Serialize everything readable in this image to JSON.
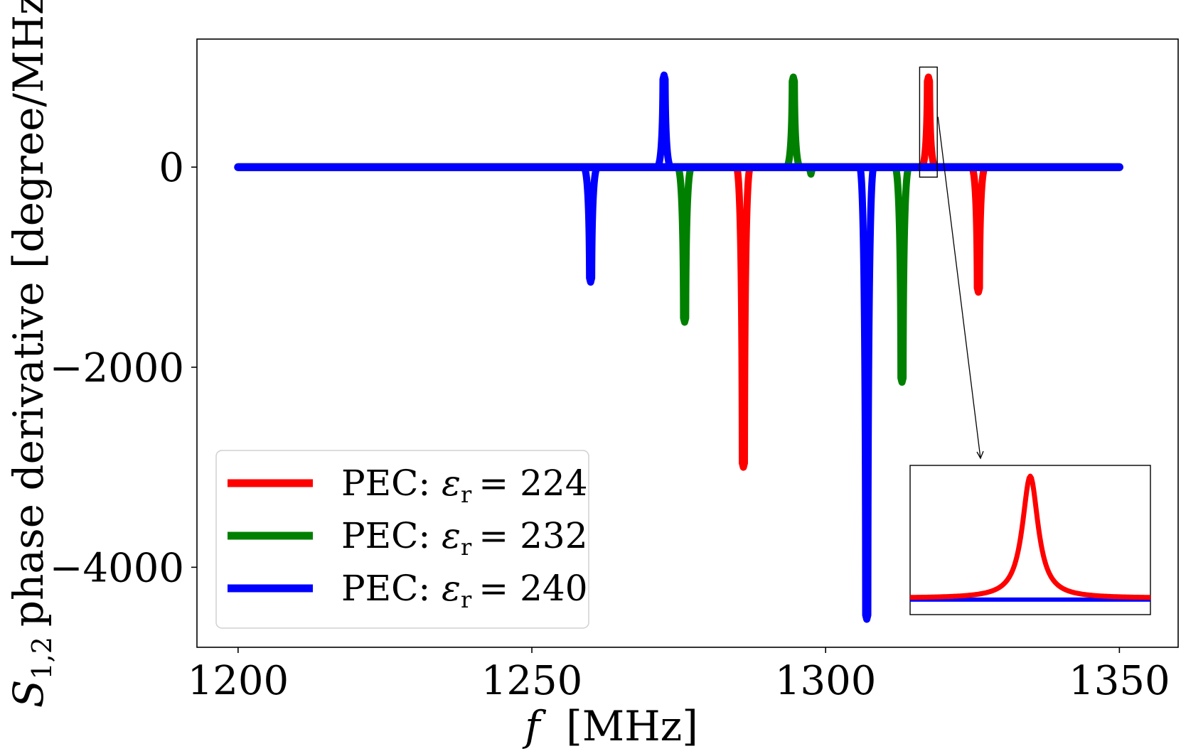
{
  "chart_data": {
    "type": "line",
    "title": "",
    "xlabel": {
      "var": "f",
      "unit": "[MHz]"
    },
    "ylabel": {
      "var": "S",
      "subscript": "1,2",
      "text": "phase derivative [degree/MHz]"
    },
    "xlim": [
      1193,
      1360
    ],
    "ylim": [
      -4800,
      1280
    ],
    "xticks": [
      {
        "value": 1200,
        "label": "1200"
      },
      {
        "value": 1250,
        "label": "1250"
      },
      {
        "value": 1300,
        "label": "1300"
      },
      {
        "value": 1350,
        "label": "1350"
      }
    ],
    "yticks": [
      {
        "value": 0,
        "label": "0"
      },
      {
        "value": -2000,
        "label": "−2000"
      },
      {
        "value": -4000,
        "label": "−4000"
      }
    ],
    "x_range": [
      1200,
      1350
    ],
    "legend_position": "lower-left",
    "series": [
      {
        "name": "PEC: εr = 224",
        "legend": {
          "prefix": "PEC:",
          "symbol": "ε",
          "sub": "r",
          "rest": "= 224"
        },
        "color": "#ff0000",
        "peaks": [
          {
            "x": 1286,
            "y": -3000
          },
          {
            "x": 1317.5,
            "y": 900
          },
          {
            "x": 1326,
            "y": -1250
          }
        ]
      },
      {
        "name": "PEC: εr = 232",
        "legend": {
          "prefix": "PEC:",
          "symbol": "ε",
          "sub": "r",
          "rest": "= 232"
        },
        "color": "#008000",
        "peaks": [
          {
            "x": 1276,
            "y": -1550
          },
          {
            "x": 1294.5,
            "y": 900
          },
          {
            "x": 1297.5,
            "y": -70
          },
          {
            "x": 1313,
            "y": -2150
          }
        ]
      },
      {
        "name": "PEC: εr = 240",
        "legend": {
          "prefix": "PEC:",
          "symbol": "ε",
          "sub": "r",
          "rest": "= 240"
        },
        "color": "#0000ff",
        "peaks": [
          {
            "x": 1260,
            "y": -1150
          },
          {
            "x": 1272.5,
            "y": 920
          },
          {
            "x": 1307,
            "y": -4520
          }
        ]
      }
    ],
    "inset": {
      "zoom_x": [
        1316,
        1319
      ],
      "zoom_y": [
        -100,
        1000
      ],
      "series_shown": [
        "PEC: εr = 224",
        "PEC: εr = 240"
      ],
      "peak": {
        "x": 1317.5,
        "y": 900
      }
    }
  }
}
